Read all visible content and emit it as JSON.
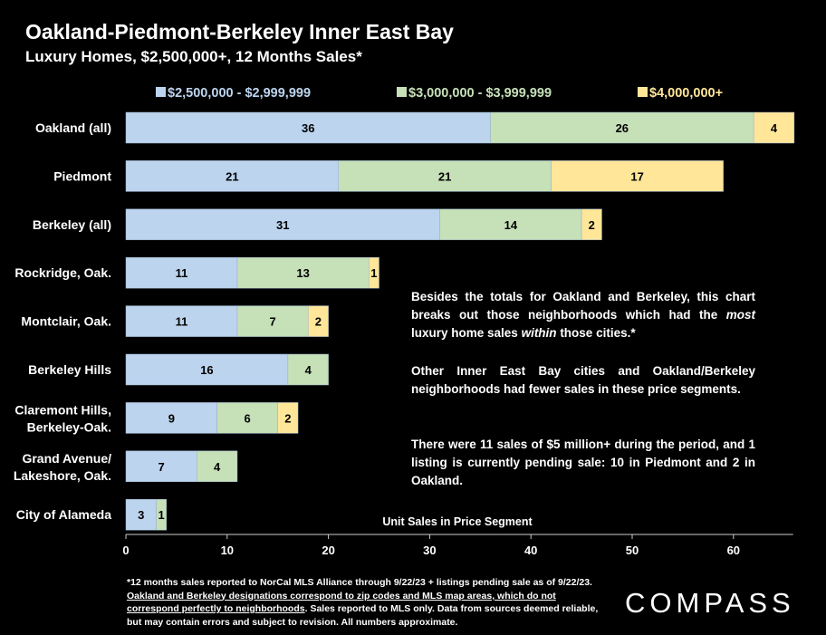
{
  "title": "Oakland-Piedmont-Berkeley Inner East Bay",
  "subtitle": "Luxury Homes, $2,500,000+, 12 Months Sales*",
  "chart_data": {
    "type": "bar",
    "orientation": "horizontal",
    "stacked": true,
    "categories": [
      "Oakland (all)",
      "Piedmont",
      "Berkeley (all)",
      "Rockridge, Oak.",
      "Montclair, Oak.",
      "Berkeley Hills",
      "Claremont Hills, Berkeley-Oak.",
      "Grand Avenue/ Lakeshore, Oak.",
      "City of Alameda"
    ],
    "series": [
      {
        "name": "$2,500,000 - $2,999,999",
        "color": "#bcd4ee",
        "values": [
          36,
          21,
          31,
          11,
          11,
          16,
          9,
          7,
          3
        ]
      },
      {
        "name": "$3,000,000 - $3,999,999",
        "color": "#c6e0b8",
        "values": [
          26,
          21,
          14,
          13,
          7,
          4,
          6,
          4,
          1
        ]
      },
      {
        "name": "$4,000,000+",
        "color": "#ffe699",
        "values": [
          4,
          17,
          2,
          1,
          2,
          null,
          2,
          null,
          null
        ]
      }
    ],
    "xlabel": "Unit Sales in Price Segment",
    "xlim": [
      0,
      65
    ],
    "xticks": [
      0,
      10,
      20,
      30,
      40,
      50,
      60
    ],
    "grid": false,
    "legend": "top"
  },
  "notes": {
    "p1_before": "Besides the totals for Oakland and Berkeley, this chart breaks out those neighborhoods which had the ",
    "p1_em1": "most",
    "p1_mid": " luxury home sales ",
    "p1_em2": "within",
    "p1_after": " those cities.*",
    "p2": "Other Inner East Bay cities and Oakland/Berkeley neighborhoods had fewer sales in these price segments.",
    "p3": "There were 11 sales of $5 million+ during the period, and 1 listing is currently pending sale: 10 in Piedmont and 2 in Oakland."
  },
  "footnote": {
    "part1": "*12 months sales reported to NorCal MLS Alliance through 9/22/23 + listings pending sale as of 9/22/23. ",
    "underlined": "Oakland and Berkeley designations correspond to zip codes and MLS map areas, which do not correspond perfectly to neighborhoods",
    "part2": ". Sales reported to MLS only. Data from sources deemed reliable, but may contain errors and subject to revision. All numbers approximate."
  },
  "logo": "COMPASS"
}
